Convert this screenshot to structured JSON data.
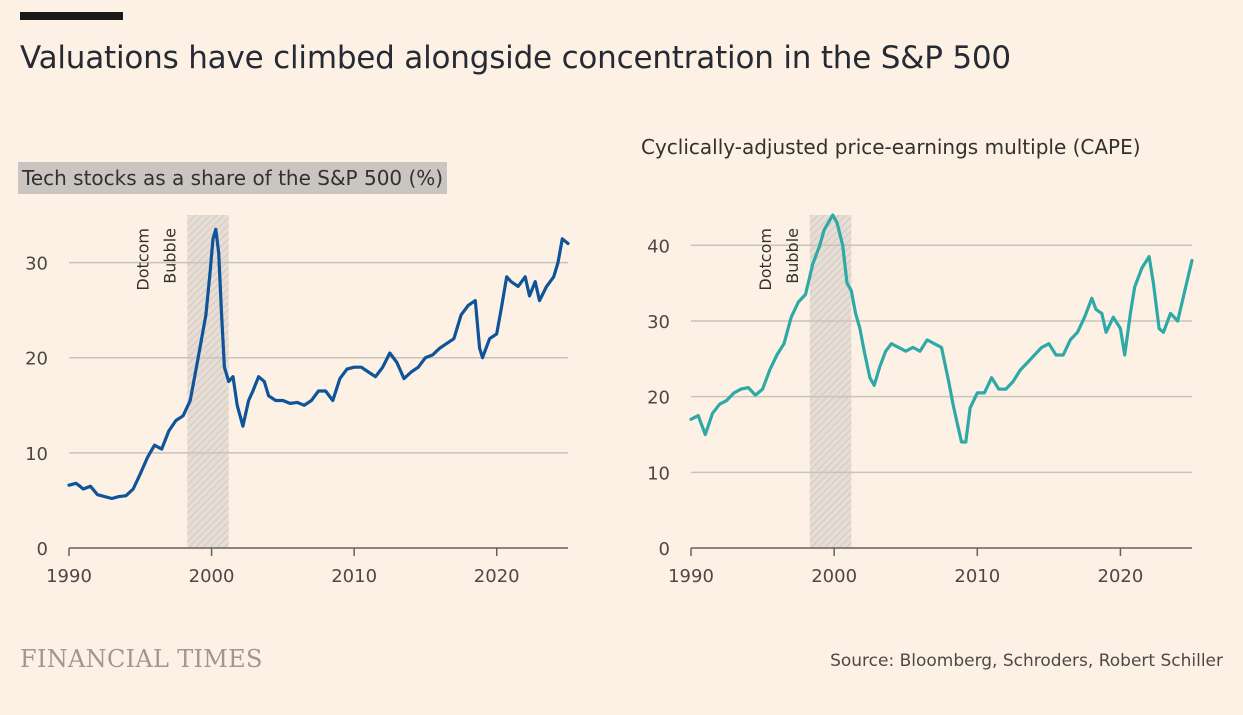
{
  "headline": "Valuations have climbed alongside concentration in the S&P 500",
  "footer": {
    "brand": "FINANCIAL TIMES",
    "source": "Source: Bloomberg, Schroders, Robert Schiller"
  },
  "colors": {
    "background": "#fdf1e6",
    "tech_line": "#0f5499",
    "cape_line": "#2ea9a6",
    "grid": "#c9c3bd",
    "shade": "#e0d9d2"
  },
  "chart_data": [
    {
      "type": "line",
      "title": "Tech stocks as a share of the S&P 500 (%)",
      "xlim": [
        1990,
        2025
      ],
      "ylim": [
        0,
        35
      ],
      "xticks": [
        1990,
        2000,
        2010,
        2020
      ],
      "yticks": [
        0,
        10,
        20,
        30
      ],
      "shaded_region": {
        "x": [
          1998.3,
          2001.2
        ],
        "label": [
          "Dotcom",
          "Bubble"
        ]
      },
      "series": [
        {
          "name": "Tech share",
          "x": [
            1990,
            1990.5,
            1991,
            1991.5,
            1992,
            1992.5,
            1993,
            1993.5,
            1994,
            1994.5,
            1995,
            1995.5,
            1996,
            1996.5,
            1997,
            1997.5,
            1998,
            1998.5,
            1999,
            1999.3,
            1999.6,
            1999.9,
            2000.1,
            2000.3,
            2000.5,
            2000.7,
            2000.9,
            2001.2,
            2001.5,
            2001.8,
            2002.2,
            2002.6,
            2002.9,
            2003.3,
            2003.7,
            2004,
            2004.5,
            2005,
            2005.5,
            2006,
            2006.5,
            2007,
            2007.5,
            2008,
            2008.5,
            2009,
            2009.5,
            2010,
            2010.5,
            2011,
            2011.5,
            2012,
            2012.5,
            2013,
            2013.5,
            2014,
            2014.5,
            2015,
            2015.5,
            2016,
            2016.5,
            2017,
            2017.5,
            2018,
            2018.5,
            2018.8,
            2019,
            2019.5,
            2020,
            2020.3,
            2020.7,
            2021,
            2021.5,
            2022,
            2022.3,
            2022.7,
            2023,
            2023.5,
            2024,
            2024.3,
            2024.6,
            2025
          ],
          "values": [
            6.6,
            6.8,
            6.2,
            6.5,
            5.6,
            5.4,
            5.2,
            5.4,
            5.5,
            6.2,
            7.8,
            9.5,
            10.8,
            10.4,
            12.3,
            13.4,
            13.9,
            15.5,
            19.5,
            22.0,
            24.5,
            29.0,
            32.5,
            33.5,
            31.0,
            24.5,
            19.0,
            17.5,
            18.0,
            15.0,
            12.8,
            15.5,
            16.5,
            18.0,
            17.5,
            16.0,
            15.5,
            15.5,
            15.2,
            15.3,
            15.0,
            15.5,
            16.5,
            16.5,
            15.5,
            17.8,
            18.8,
            19.0,
            19.0,
            18.5,
            18.0,
            19.0,
            20.5,
            19.5,
            17.8,
            18.5,
            19.0,
            20.0,
            20.3,
            21.0,
            21.5,
            22.0,
            24.5,
            25.5,
            26.0,
            21.0,
            20.0,
            22.0,
            22.5,
            25.0,
            28.5,
            28.0,
            27.5,
            28.5,
            26.5,
            28.0,
            26.0,
            27.5,
            28.5,
            30.0,
            32.5,
            32.0
          ]
        }
      ]
    },
    {
      "type": "line",
      "title": "Cyclically-adjusted price-earnings multiple (CAPE)",
      "xlim": [
        1990,
        2025
      ],
      "ylim": [
        0,
        44
      ],
      "xticks": [
        1990,
        2000,
        2010,
        2020
      ],
      "yticks": [
        0,
        10,
        20,
        30,
        40
      ],
      "shaded_region": {
        "x": [
          1998.3,
          2001.2
        ],
        "label": [
          "Dotcom",
          "Bubble"
        ]
      },
      "series": [
        {
          "name": "CAPE",
          "x": [
            1990,
            1990.5,
            1991,
            1991.5,
            1992,
            1992.5,
            1993,
            1993.5,
            1994,
            1994.5,
            1995,
            1995.5,
            1996,
            1996.5,
            1997,
            1997.5,
            1998,
            1998.5,
            1999,
            1999.3,
            1999.6,
            1999.9,
            2000.2,
            2000.6,
            2000.9,
            2001.2,
            2001.5,
            2001.8,
            2002.1,
            2002.5,
            2002.8,
            2003.2,
            2003.6,
            2004,
            2004.5,
            2005,
            2005.5,
            2006,
            2006.5,
            2007,
            2007.5,
            2008,
            2008.3,
            2008.6,
            2008.9,
            2009.2,
            2009.5,
            2010,
            2010.5,
            2011,
            2011.5,
            2012,
            2012.5,
            2013,
            2013.5,
            2014,
            2014.5,
            2015,
            2015.5,
            2016,
            2016.5,
            2017,
            2017.5,
            2018,
            2018.3,
            2018.7,
            2019,
            2019.5,
            2020,
            2020.3,
            2020.7,
            2021,
            2021.5,
            2022,
            2022.3,
            2022.7,
            2023,
            2023.5,
            2024,
            2024.5,
            2025
          ],
          "values": [
            17.0,
            17.5,
            15.0,
            17.8,
            19.0,
            19.5,
            20.5,
            21.0,
            21.2,
            20.2,
            21.0,
            23.5,
            25.5,
            27.0,
            30.5,
            32.5,
            33.5,
            37.5,
            40.0,
            42.0,
            43.0,
            44.0,
            43.0,
            40.0,
            35.0,
            34.0,
            31.0,
            29.0,
            26.0,
            22.5,
            21.5,
            24.0,
            26.0,
            27.0,
            26.5,
            26.0,
            26.5,
            26.0,
            27.5,
            27.0,
            26.5,
            22.0,
            19.0,
            16.5,
            14.0,
            14.0,
            18.5,
            20.5,
            20.5,
            22.5,
            21.0,
            21.0,
            22.0,
            23.5,
            24.5,
            25.5,
            26.5,
            27.0,
            25.5,
            25.5,
            27.5,
            28.5,
            30.5,
            33.0,
            31.5,
            31.0,
            28.5,
            30.5,
            29.0,
            25.5,
            31.0,
            34.5,
            37.0,
            38.5,
            35.0,
            29.0,
            28.5,
            31.0,
            30.0,
            34.0,
            38.0
          ]
        }
      ]
    }
  ]
}
